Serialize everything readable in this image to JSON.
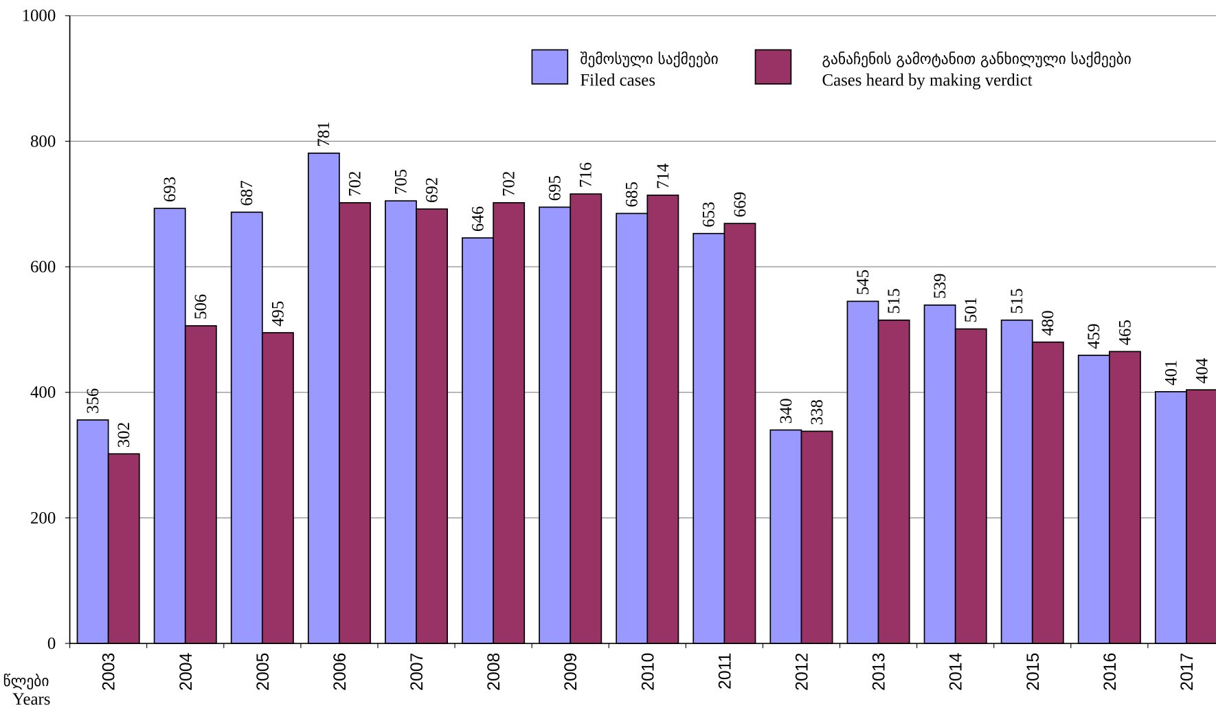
{
  "chart_data": {
    "type": "bar",
    "x_label_ka": "წლები",
    "x_label": "Years",
    "categories": [
      "2003",
      "2004",
      "2005",
      "2006",
      "2007",
      "2008",
      "2009",
      "2010",
      "2011",
      "2012",
      "2013",
      "2014",
      "2015",
      "2016",
      "2017"
    ],
    "series": [
      {
        "name_ka": "შემოსული საქმეები",
        "name": "Filed cases",
        "color": "#9999ff",
        "values": [
          356,
          693,
          687,
          781,
          705,
          646,
          695,
          685,
          653,
          340,
          545,
          539,
          515,
          459,
          401
        ]
      },
      {
        "name_ka": "განაჩენის გამოტანით განხილული საქმეები",
        "name": "Cases heard by making verdict",
        "color": "#993366",
        "values": [
          302,
          506,
          495,
          702,
          692,
          702,
          716,
          714,
          669,
          338,
          515,
          501,
          480,
          465,
          404
        ]
      }
    ],
    "ylim": [
      0,
      1000
    ],
    "yticks": [
      0,
      200,
      400,
      600,
      800,
      1000
    ],
    "grid": true
  }
}
